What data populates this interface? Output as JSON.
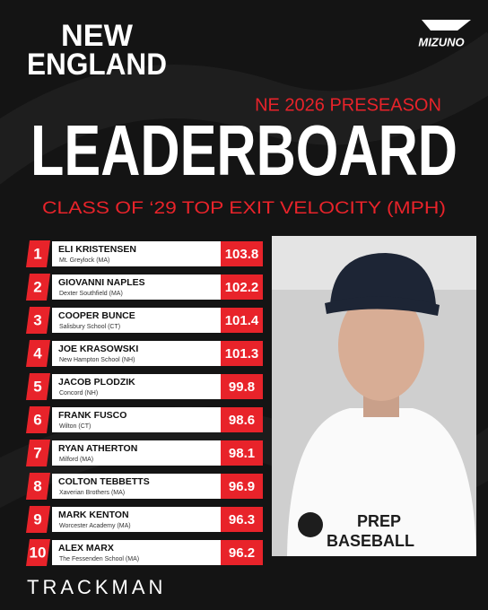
{
  "header": {
    "logo_top": "NEW",
    "logo_bottom": "ENGLAND",
    "sponsor": "MIZUNO",
    "kicker": "NE 2026 PRESEASON",
    "title": "LEADERBOARD",
    "subtitle": "CLASS OF ‘29 TOP EXIT VELOCITY (MPH)"
  },
  "table": {
    "rows": [
      [
        "1",
        "ELI KRISTENSEN",
        "Mt. Greylock (MA)",
        "103.8"
      ],
      [
        "2",
        "GIOVANNI NAPLES",
        "Dexter Southfield (MA)",
        "102.2"
      ],
      [
        "3",
        "COOPER BUNCE",
        "Salisbury School (CT)",
        "101.4"
      ],
      [
        "4",
        "JOE KRASOWSKI",
        "New Hampton School (NH)",
        "101.3"
      ],
      [
        "5",
        "JACOB PLODZIK",
        "Concord (NH)",
        "99.8"
      ],
      [
        "6",
        "FRANK FUSCO",
        "Wilton (CT)",
        "98.6"
      ],
      [
        "7",
        "RYAN ATHERTON",
        "Milford (MA)",
        "98.1"
      ],
      [
        "8",
        "COLTON TEBBETTS",
        "Xaverian Brothers (MA)",
        "96.9"
      ],
      [
        "9",
        "MARK KENTON",
        "Worcester Academy (MA)",
        "96.3"
      ],
      [
        "10",
        "ALEX MARX",
        "The Fessenden School (MA)",
        "96.2"
      ]
    ]
  },
  "photo": {
    "shirt_line1": "PREP",
    "shirt_line2": "BASEBALL"
  },
  "footer": {
    "brand": "TRACKMAN"
  }
}
